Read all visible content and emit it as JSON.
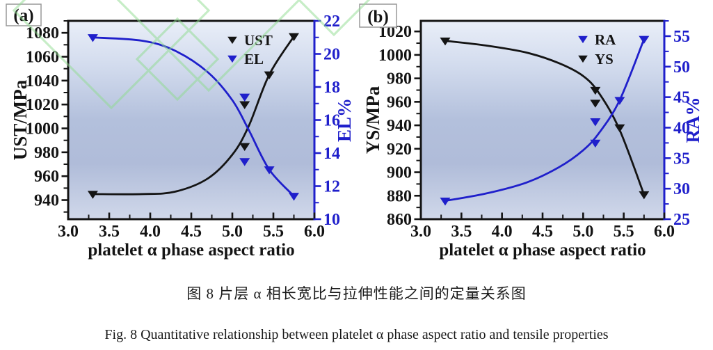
{
  "page": {
    "background": "#ffffff"
  },
  "captions": {
    "chinese": "图 8  片层 α 相长宽比与拉伸性能之间的定量关系图",
    "english": "Fig. 8 Quantitative relationship between platelet α phase aspect ratio and tensile properties"
  },
  "colors": {
    "black": "#141414",
    "blue": "#1f1fcb",
    "watermark_green": "#8fdc8f",
    "plot_bg_top": "#e9eef8",
    "plot_bg_mid": "#b3c0dc",
    "plot_bg_bottom": "#d0d8ea",
    "panel_box_border": "#999999"
  },
  "chart_data": [
    {
      "type": "line",
      "panel_label": "(a)",
      "xlabel": "platelet α phase aspect ratio",
      "xlim": [
        3.0,
        6.0
      ],
      "x_ticks": [
        3.0,
        3.5,
        4.0,
        4.5,
        5.0,
        5.5,
        6.0
      ],
      "x_tick_decimals": 1,
      "x_minor_step": 0.25,
      "grid": false,
      "legend_position": "top-right-inside",
      "left_axis": {
        "label": "UST/MPa",
        "color": "#141414",
        "lim": [
          924,
          1090
        ],
        "ticks": [
          940,
          960,
          980,
          1000,
          1020,
          1040,
          1060,
          1080
        ],
        "minor_step": 10,
        "decimals": 0
      },
      "right_axis": {
        "label": "EL%",
        "color": "#1f1fcb",
        "lim": [
          10,
          22
        ],
        "ticks": [
          10,
          12,
          14,
          16,
          18,
          20,
          22
        ],
        "minor_step": 1,
        "decimals": 0
      },
      "legend": [
        {
          "label": "UST",
          "color": "#141414"
        },
        {
          "label": "EL",
          "color": "#1f1fcb"
        }
      ],
      "series": [
        {
          "name": "UST",
          "axis": "left",
          "color": "#141414",
          "marker": "triangle-down",
          "points": [
            [
              3.3,
              945
            ],
            [
              5.15,
              1020
            ],
            [
              5.15,
              985
            ],
            [
              5.45,
              1045
            ],
            [
              5.75,
              1077
            ]
          ],
          "curve": [
            [
              3.3,
              945
            ],
            [
              3.9,
              945
            ],
            [
              4.3,
              947
            ],
            [
              4.7,
              958
            ],
            [
              5.0,
              978
            ],
            [
              5.2,
              1002
            ],
            [
              5.45,
              1045
            ],
            [
              5.75,
              1077
            ]
          ]
        },
        {
          "name": "EL",
          "axis": "right",
          "color": "#1f1fcb",
          "marker": "triangle-down",
          "points": [
            [
              3.3,
              21.0
            ],
            [
              5.15,
              17.4
            ],
            [
              5.15,
              13.5
            ],
            [
              5.45,
              13.0
            ],
            [
              5.75,
              11.4
            ]
          ],
          "curve": [
            [
              3.3,
              21.0
            ],
            [
              3.9,
              20.8
            ],
            [
              4.3,
              20.2
            ],
            [
              4.7,
              18.9
            ],
            [
              5.0,
              17.2
            ],
            [
              5.2,
              15.4
            ],
            [
              5.45,
              13.0
            ],
            [
              5.75,
              11.4
            ]
          ]
        }
      ]
    },
    {
      "type": "line",
      "panel_label": "(b)",
      "xlabel": "platelet α phase aspect ratio",
      "xlim": [
        3.0,
        6.0
      ],
      "x_ticks": [
        3.0,
        3.5,
        4.0,
        4.5,
        5.0,
        5.5,
        6.0
      ],
      "x_tick_decimals": 1,
      "x_minor_step": 0.25,
      "grid": false,
      "legend_position": "top-right-inside",
      "left_axis": {
        "label": "YS/MPa",
        "color": "#141414",
        "lim": [
          860,
          1029
        ],
        "ticks": [
          860,
          880,
          900,
          920,
          940,
          960,
          980,
          1000,
          1020
        ],
        "minor_step": 10,
        "decimals": 0
      },
      "right_axis": {
        "label": "RA%",
        "color": "#1f1fcb",
        "lim": [
          25,
          57.5
        ],
        "ticks": [
          25,
          30,
          35,
          40,
          45,
          50,
          55
        ],
        "minor_step": 2.5,
        "decimals": 0
      },
      "legend": [
        {
          "label": "RA",
          "color": "#1f1fcb"
        },
        {
          "label": "YS",
          "color": "#141414"
        }
      ],
      "series": [
        {
          "name": "YS",
          "axis": "left",
          "color": "#141414",
          "marker": "triangle-down",
          "points": [
            [
              3.3,
              1012
            ],
            [
              5.15,
              970
            ],
            [
              5.15,
              959
            ],
            [
              5.45,
              938
            ],
            [
              5.75,
              881
            ]
          ],
          "curve": [
            [
              3.3,
              1012
            ],
            [
              3.8,
              1008
            ],
            [
              4.3,
              1002
            ],
            [
              4.7,
              993
            ],
            [
              5.0,
              982
            ],
            [
              5.2,
              967
            ],
            [
              5.45,
              936
            ],
            [
              5.75,
              881
            ]
          ]
        },
        {
          "name": "RA",
          "axis": "right",
          "color": "#1f1fcb",
          "marker": "triangle-down",
          "points": [
            [
              3.3,
              28
            ],
            [
              5.15,
              41
            ],
            [
              5.15,
              37.5
            ],
            [
              5.45,
              44.5
            ],
            [
              5.75,
              54.5
            ]
          ],
          "curve": [
            [
              3.3,
              28
            ],
            [
              3.8,
              29.2
            ],
            [
              4.3,
              31
            ],
            [
              4.7,
              33.5
            ],
            [
              5.0,
              36.3
            ],
            [
              5.2,
              39.2
            ],
            [
              5.45,
              44.5
            ],
            [
              5.75,
              54.5
            ]
          ]
        }
      ]
    }
  ]
}
